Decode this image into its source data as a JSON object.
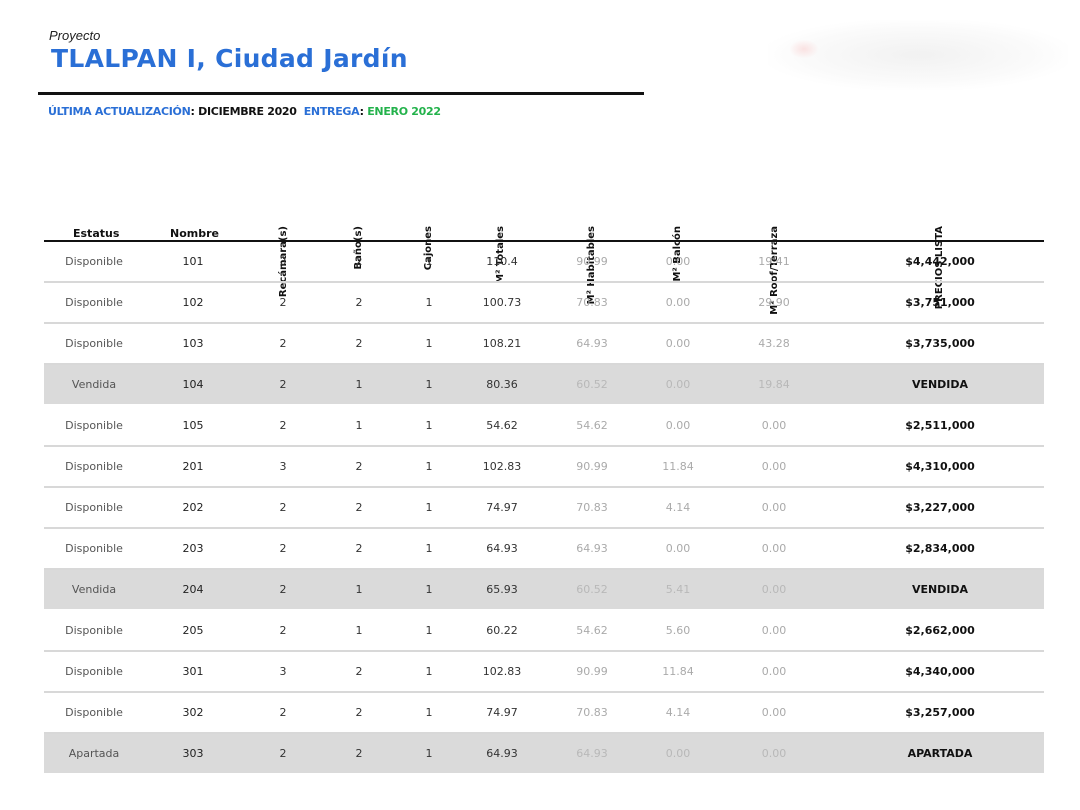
{
  "project": {
    "label": "Proyecto",
    "title": "TLALPAN I, Ciudad Jardín"
  },
  "update": {
    "label": "ÚLTIMA ACTUALIZACIÓN",
    "sep1": ": ",
    "date": "DICIEMBRE 2020",
    "delivery_label": "ENTREGA",
    "sep2": ": ",
    "delivery": "ENERO 2022",
    "colors": {
      "label": "#2a6fd6",
      "date": "#111111",
      "delivery": "#23b24b"
    }
  },
  "columns": {
    "estatus": "Estatus",
    "nombre": "Nombre",
    "recamaras": "Recámara(s)",
    "banos": "Baño(s)",
    "cajones": "Cajones",
    "m2_totales": "M² Totales",
    "m2_habitables": "M² Habitables",
    "m2_balcon": "M² Balcón",
    "m2_roof": "M² Roof/Terraza",
    "precios": "PRECIOS LISTA"
  },
  "rows": [
    {
      "estatus": "Disponible",
      "nombre": "101",
      "recamaras": "3",
      "banos": "2",
      "cajones": "1",
      "m2_totales": "110.4",
      "m2_habitables": "90.99",
      "m2_balcon": "0.00",
      "m2_roof": "19.41",
      "precio": "$4,442,000",
      "sold": false
    },
    {
      "estatus": "Disponible",
      "nombre": "102",
      "recamaras": "2",
      "banos": "2",
      "cajones": "1",
      "m2_totales": "100.73",
      "m2_habitables": "70.83",
      "m2_balcon": "0.00",
      "m2_roof": "29.90",
      "precio": "$3,751,000",
      "sold": false
    },
    {
      "estatus": "Disponible",
      "nombre": "103",
      "recamaras": "2",
      "banos": "2",
      "cajones": "1",
      "m2_totales": "108.21",
      "m2_habitables": "64.93",
      "m2_balcon": "0.00",
      "m2_roof": "43.28",
      "precio": "$3,735,000",
      "sold": false
    },
    {
      "estatus": "Vendida",
      "nombre": "104",
      "recamaras": "2",
      "banos": "1",
      "cajones": "1",
      "m2_totales": "80.36",
      "m2_habitables": "60.52",
      "m2_balcon": "0.00",
      "m2_roof": "19.84",
      "precio": "VENDIDA",
      "sold": true
    },
    {
      "estatus": "Disponible",
      "nombre": "105",
      "recamaras": "2",
      "banos": "1",
      "cajones": "1",
      "m2_totales": "54.62",
      "m2_habitables": "54.62",
      "m2_balcon": "0.00",
      "m2_roof": "0.00",
      "precio": "$2,511,000",
      "sold": false
    },
    {
      "estatus": "Disponible",
      "nombre": "201",
      "recamaras": "3",
      "banos": "2",
      "cajones": "1",
      "m2_totales": "102.83",
      "m2_habitables": "90.99",
      "m2_balcon": "11.84",
      "m2_roof": "0.00",
      "precio": "$4,310,000",
      "sold": false
    },
    {
      "estatus": "Disponible",
      "nombre": "202",
      "recamaras": "2",
      "banos": "2",
      "cajones": "1",
      "m2_totales": "74.97",
      "m2_habitables": "70.83",
      "m2_balcon": "4.14",
      "m2_roof": "0.00",
      "precio": "$3,227,000",
      "sold": false
    },
    {
      "estatus": "Disponible",
      "nombre": "203",
      "recamaras": "2",
      "banos": "2",
      "cajones": "1",
      "m2_totales": "64.93",
      "m2_habitables": "64.93",
      "m2_balcon": "0.00",
      "m2_roof": "0.00",
      "precio": "$2,834,000",
      "sold": false
    },
    {
      "estatus": "Vendida",
      "nombre": "204",
      "recamaras": "2",
      "banos": "1",
      "cajones": "1",
      "m2_totales": "65.93",
      "m2_habitables": "60.52",
      "m2_balcon": "5.41",
      "m2_roof": "0.00",
      "precio": "VENDIDA",
      "sold": true
    },
    {
      "estatus": "Disponible",
      "nombre": "205",
      "recamaras": "2",
      "banos": "1",
      "cajones": "1",
      "m2_totales": "60.22",
      "m2_habitables": "54.62",
      "m2_balcon": "5.60",
      "m2_roof": "0.00",
      "precio": "$2,662,000",
      "sold": false
    },
    {
      "estatus": "Disponible",
      "nombre": "301",
      "recamaras": "3",
      "banos": "2",
      "cajones": "1",
      "m2_totales": "102.83",
      "m2_habitables": "90.99",
      "m2_balcon": "11.84",
      "m2_roof": "0.00",
      "precio": "$4,340,000",
      "sold": false
    },
    {
      "estatus": "Disponible",
      "nombre": "302",
      "recamaras": "2",
      "banos": "2",
      "cajones": "1",
      "m2_totales": "74.97",
      "m2_habitables": "70.83",
      "m2_balcon": "4.14",
      "m2_roof": "0.00",
      "precio": "$3,257,000",
      "sold": false
    },
    {
      "estatus": "Apartada",
      "nombre": "303",
      "recamaras": "2",
      "banos": "2",
      "cajones": "1",
      "m2_totales": "64.93",
      "m2_habitables": "64.93",
      "m2_balcon": "0.00",
      "m2_roof": "0.00",
      "precio": "APARTADA",
      "sold": true
    }
  ]
}
